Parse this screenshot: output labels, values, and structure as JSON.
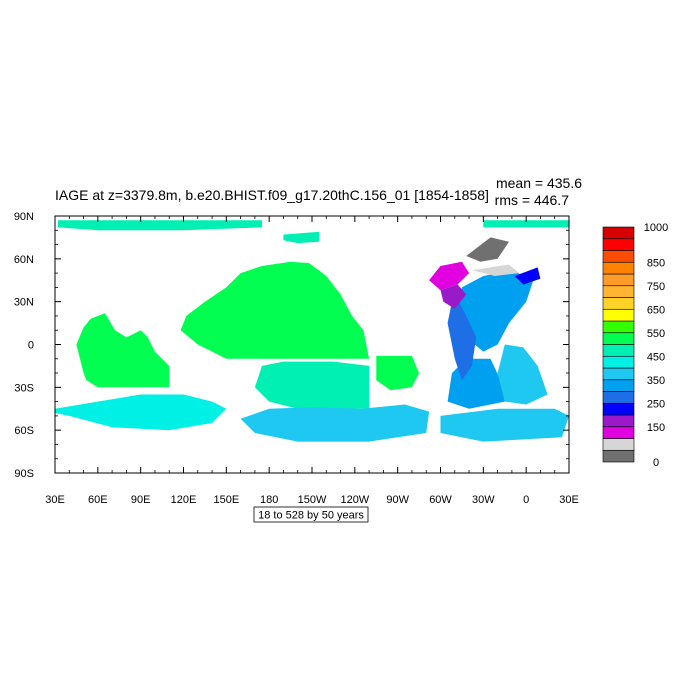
{
  "chart_data": {
    "type": "heatmap",
    "title": "IAGE at z=3379.8m, b.e20.BHIST.f09_g17.20thC.156_01 [1854-1858]",
    "stats": {
      "mean": "mean = 435.6",
      "rms": "rms = 446.7"
    },
    "subtitle": "18 to 528 by 50 years",
    "projection": "cylindrical-equidistant",
    "x_range": [
      30,
      390
    ],
    "y_range": [
      -90,
      90
    ],
    "x_ticks": [
      {
        "value": 30,
        "label": "30E"
      },
      {
        "value": 60,
        "label": "60E"
      },
      {
        "value": 90,
        "label": "90E"
      },
      {
        "value": 120,
        "label": "120E"
      },
      {
        "value": 150,
        "label": "150E"
      },
      {
        "value": 180,
        "label": "180"
      },
      {
        "value": 210,
        "label": "150W"
      },
      {
        "value": 240,
        "label": "120W"
      },
      {
        "value": 270,
        "label": "90W"
      },
      {
        "value": 300,
        "label": "60W"
      },
      {
        "value": 330,
        "label": "30W"
      },
      {
        "value": 360,
        "label": "0"
      },
      {
        "value": 390,
        "label": "30E"
      }
    ],
    "y_ticks": [
      {
        "value": 90,
        "label": "90N"
      },
      {
        "value": 60,
        "label": "60N"
      },
      {
        "value": 30,
        "label": "30N"
      },
      {
        "value": 0,
        "label": "0"
      },
      {
        "value": -30,
        "label": "30S"
      },
      {
        "value": -60,
        "label": "60S"
      },
      {
        "value": -90,
        "label": "90S"
      }
    ],
    "colorbar": {
      "levels": [
        18,
        68,
        118,
        168,
        218,
        268,
        318,
        368,
        418,
        468,
        518,
        568,
        618,
        668,
        718,
        768,
        818,
        868,
        918,
        968,
        1018
      ],
      "colors": [
        "#707070",
        "#d6d6d6",
        "#e000e0",
        "#9a19c8",
        "#0000ff",
        "#1e6ee6",
        "#00a0f0",
        "#1ec8f0",
        "#00f0e6",
        "#00f0b4",
        "#00ff50",
        "#32ff00",
        "#ffff00",
        "#ffd228",
        "#ffb432",
        "#ff9b28",
        "#ff8200",
        "#ff4b00",
        "#ff0000",
        "#d70000"
      ],
      "labels": [
        {
          "level": 0,
          "text": "0"
        },
        {
          "level": 3,
          "text": "150"
        },
        {
          "level": 5,
          "text": "250"
        },
        {
          "level": 7,
          "text": "350"
        },
        {
          "level": 9,
          "text": "450"
        },
        {
          "level": 11,
          "text": "550"
        },
        {
          "level": 13,
          "text": "650"
        },
        {
          "level": 15,
          "text": "750"
        },
        {
          "level": 17,
          "text": "850"
        },
        {
          "level": 20,
          "text": "1000"
        }
      ]
    },
    "regions": [
      {
        "name": "pacific",
        "value": 560,
        "colorIndex": 10,
        "points": [
          [
            250,
            -10
          ],
          [
            246,
            10
          ],
          [
            238,
            20
          ],
          [
            230,
            35
          ],
          [
            220,
            48
          ],
          [
            208,
            57
          ],
          [
            195,
            58
          ],
          [
            175,
            55
          ],
          [
            160,
            50
          ],
          [
            150,
            40
          ],
          [
            135,
            30
          ],
          [
            122,
            20
          ],
          [
            118,
            10
          ],
          [
            130,
            0
          ],
          [
            140,
            -5
          ],
          [
            150,
            -10
          ],
          [
            180,
            -10
          ],
          [
            210,
            -10
          ],
          [
            240,
            -10
          ]
        ]
      },
      {
        "name": "indian-ocean",
        "value": 560,
        "colorIndex": 10,
        "points": [
          [
            50,
            -20
          ],
          [
            45,
            0
          ],
          [
            50,
            12
          ],
          [
            55,
            18
          ],
          [
            65,
            22
          ],
          [
            72,
            10
          ],
          [
            80,
            5
          ],
          [
            90,
            10
          ],
          [
            95,
            5
          ],
          [
            100,
            -5
          ],
          [
            110,
            -15
          ],
          [
            110,
            -30
          ],
          [
            80,
            -30
          ],
          [
            60,
            -30
          ],
          [
            52,
            -25
          ]
        ]
      },
      {
        "name": "south-pacific-west",
        "value": 480,
        "colorIndex": 9,
        "points": [
          [
            190,
            -12
          ],
          [
            225,
            -12
          ],
          [
            250,
            -15
          ],
          [
            250,
            -45
          ],
          [
            200,
            -45
          ],
          [
            180,
            -40
          ],
          [
            170,
            -30
          ],
          [
            175,
            -15
          ]
        ]
      },
      {
        "name": "south-pacific-east",
        "value": 530,
        "colorIndex": 10,
        "points": [
          [
            255,
            -8
          ],
          [
            280,
            -8
          ],
          [
            285,
            -20
          ],
          [
            280,
            -30
          ],
          [
            265,
            -32
          ],
          [
            255,
            -25
          ]
        ]
      },
      {
        "name": "southern-ocean-indian",
        "value": 450,
        "colorIndex": 8,
        "points": [
          [
            30,
            -45
          ],
          [
            60,
            -40
          ],
          [
            90,
            -35
          ],
          [
            120,
            -35
          ],
          [
            140,
            -40
          ],
          [
            150,
            -45
          ],
          [
            140,
            -55
          ],
          [
            110,
            -60
          ],
          [
            70,
            -58
          ],
          [
            40,
            -50
          ],
          [
            30,
            -48
          ]
        ]
      },
      {
        "name": "southern-ocean-pacific",
        "value": 430,
        "colorIndex": 7,
        "points": [
          [
            180,
            -45
          ],
          [
            210,
            -44
          ],
          [
            245,
            -45
          ],
          [
            275,
            -42
          ],
          [
            292,
            -47
          ],
          [
            290,
            -62
          ],
          [
            250,
            -68
          ],
          [
            200,
            -68
          ],
          [
            170,
            -62
          ],
          [
            160,
            -52
          ]
        ]
      },
      {
        "name": "south-atlantic-deep",
        "value": 330,
        "colorIndex": 6,
        "points": [
          [
            318,
            -10
          ],
          [
            335,
            -10
          ],
          [
            342,
            -25
          ],
          [
            345,
            -40
          ],
          [
            320,
            -45
          ],
          [
            305,
            -40
          ],
          [
            308,
            -20
          ]
        ]
      },
      {
        "name": "south-atlantic-east",
        "value": 380,
        "colorIndex": 7,
        "points": [
          [
            345,
            0
          ],
          [
            358,
            -2
          ],
          [
            368,
            -15
          ],
          [
            375,
            -35
          ],
          [
            360,
            -42
          ],
          [
            345,
            -40
          ],
          [
            340,
            -20
          ]
        ]
      },
      {
        "name": "weddell",
        "value": 420,
        "colorIndex": 7,
        "points": [
          [
            300,
            -50
          ],
          [
            340,
            -45
          ],
          [
            380,
            -45
          ],
          [
            390,
            -50
          ],
          [
            385,
            -65
          ],
          [
            330,
            -68
          ],
          [
            300,
            -62
          ]
        ]
      },
      {
        "name": "north-atlantic-deep",
        "value": 310,
        "colorIndex": 6,
        "points": [
          [
            315,
            40
          ],
          [
            330,
            48
          ],
          [
            350,
            52
          ],
          [
            365,
            45
          ],
          [
            360,
            30
          ],
          [
            348,
            15
          ],
          [
            340,
            0
          ],
          [
            330,
            -5
          ],
          [
            318,
            5
          ],
          [
            310,
            25
          ]
        ]
      },
      {
        "name": "nadw-core",
        "value": 280,
        "colorIndex": 5,
        "points": [
          [
            312,
            32
          ],
          [
            318,
            20
          ],
          [
            325,
            5
          ],
          [
            322,
            -15
          ],
          [
            315,
            -25
          ],
          [
            310,
            -10
          ],
          [
            305,
            15
          ],
          [
            308,
            30
          ]
        ]
      },
      {
        "name": "labrador",
        "value": 140,
        "colorIndex": 2,
        "points": [
          [
            292,
            45
          ],
          [
            300,
            55
          ],
          [
            315,
            58
          ],
          [
            320,
            50
          ],
          [
            312,
            42
          ],
          [
            300,
            38
          ]
        ]
      },
      {
        "name": "labrador-edge",
        "value": 190,
        "colorIndex": 3,
        "points": [
          [
            300,
            38
          ],
          [
            312,
            42
          ],
          [
            318,
            35
          ],
          [
            310,
            25
          ],
          [
            302,
            30
          ]
        ]
      },
      {
        "name": "gin-seas",
        "value": 40,
        "colorIndex": 0,
        "points": [
          [
            318,
            62
          ],
          [
            335,
            75
          ],
          [
            348,
            72
          ],
          [
            340,
            60
          ],
          [
            328,
            58
          ]
        ]
      },
      {
        "name": "iceland-shelf",
        "value": 90,
        "colorIndex": 1,
        "points": [
          [
            322,
            52
          ],
          [
            348,
            56
          ],
          [
            355,
            50
          ],
          [
            338,
            48
          ]
        ]
      },
      {
        "name": "nordic-overflow",
        "value": 230,
        "colorIndex": 4,
        "points": [
          [
            352,
            48
          ],
          [
            368,
            54
          ],
          [
            370,
            46
          ],
          [
            358,
            42
          ]
        ]
      },
      {
        "name": "arctic-strip",
        "value": 480,
        "colorIndex": 9,
        "points": [
          [
            32,
            87
          ],
          [
            175,
            87
          ],
          [
            175,
            82
          ],
          [
            120,
            80
          ],
          [
            60,
            80
          ],
          [
            32,
            82
          ]
        ]
      },
      {
        "name": "arctic-strip-east",
        "value": 480,
        "colorIndex": 9,
        "points": [
          [
            330,
            87
          ],
          [
            390,
            87
          ],
          [
            390,
            82
          ],
          [
            330,
            82
          ]
        ]
      },
      {
        "name": "arctic-small",
        "value": 480,
        "colorIndex": 9,
        "points": [
          [
            190,
            77
          ],
          [
            215,
            79
          ],
          [
            215,
            72
          ],
          [
            200,
            71
          ],
          [
            190,
            73
          ]
        ]
      }
    ]
  }
}
